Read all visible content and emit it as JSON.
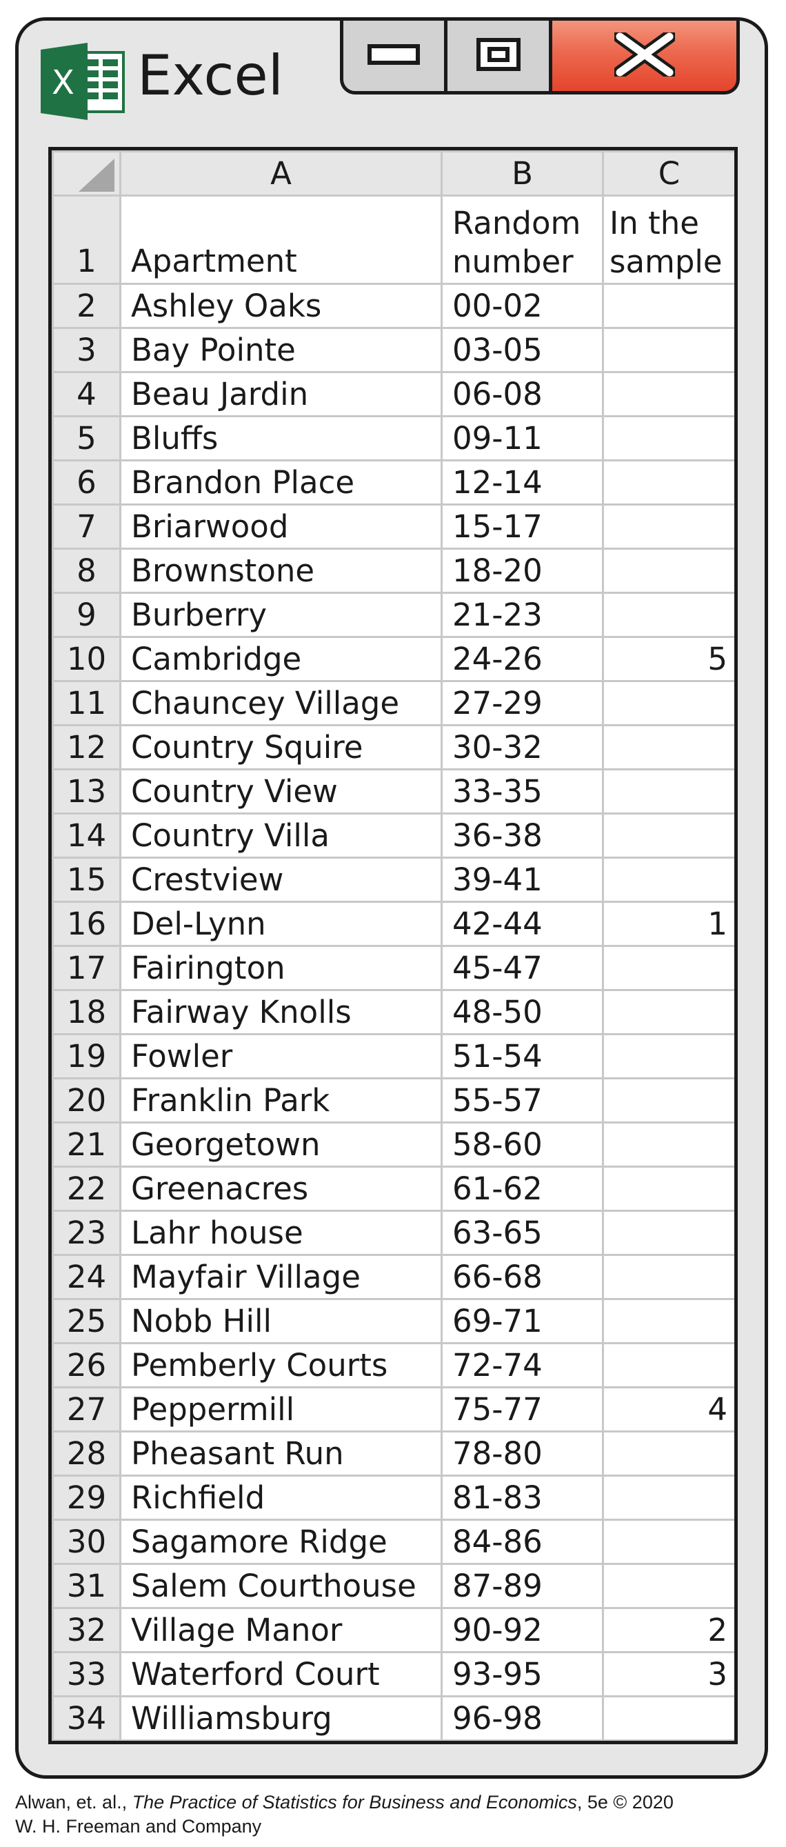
{
  "app": {
    "title": "Excel",
    "logo_letter": "X"
  },
  "window_controls": [
    "minimize-icon",
    "maximize-icon",
    "close-icon"
  ],
  "columns": {
    "corner": "",
    "a": "A",
    "b": "B",
    "c": "C"
  },
  "header_row": {
    "number": "1",
    "apartment": "Apartment",
    "random_line1": "Random",
    "random_line2": "number",
    "sample_line1": "In the",
    "sample_line2": "sample"
  },
  "rows": [
    {
      "n": "2",
      "apartment": "Ashley Oaks",
      "random": "00-02",
      "sample": ""
    },
    {
      "n": "3",
      "apartment": "Bay Pointe",
      "random": "03-05",
      "sample": ""
    },
    {
      "n": "4",
      "apartment": "Beau Jardin",
      "random": "06-08",
      "sample": ""
    },
    {
      "n": "5",
      "apartment": "Bluffs",
      "random": "09-11",
      "sample": ""
    },
    {
      "n": "6",
      "apartment": "Brandon Place",
      "random": "12-14",
      "sample": ""
    },
    {
      "n": "7",
      "apartment": "Briarwood",
      "random": "15-17",
      "sample": ""
    },
    {
      "n": "8",
      "apartment": "Brownstone",
      "random": "18-20",
      "sample": ""
    },
    {
      "n": "9",
      "apartment": "Burberry",
      "random": "21-23",
      "sample": ""
    },
    {
      "n": "10",
      "apartment": "Cambridge",
      "random": "24-26",
      "sample": "5"
    },
    {
      "n": "11",
      "apartment": "Chauncey Village",
      "random": "27-29",
      "sample": ""
    },
    {
      "n": "12",
      "apartment": "Country Squire",
      "random": "30-32",
      "sample": ""
    },
    {
      "n": "13",
      "apartment": "Country View",
      "random": "33-35",
      "sample": ""
    },
    {
      "n": "14",
      "apartment": "Country Villa",
      "random": "36-38",
      "sample": ""
    },
    {
      "n": "15",
      "apartment": "Crestview",
      "random": "39-41",
      "sample": ""
    },
    {
      "n": "16",
      "apartment": "Del-Lynn",
      "random": "42-44",
      "sample": "1"
    },
    {
      "n": "17",
      "apartment": "Fairington",
      "random": "45-47",
      "sample": ""
    },
    {
      "n": "18",
      "apartment": "Fairway Knolls",
      "random": "48-50",
      "sample": ""
    },
    {
      "n": "19",
      "apartment": "Fowler",
      "random": "51-54",
      "sample": ""
    },
    {
      "n": "20",
      "apartment": "Franklin Park",
      "random": "55-57",
      "sample": ""
    },
    {
      "n": "21",
      "apartment": "Georgetown",
      "random": "58-60",
      "sample": ""
    },
    {
      "n": "22",
      "apartment": "Greenacres",
      "random": "61-62",
      "sample": ""
    },
    {
      "n": "23",
      "apartment": "Lahr house",
      "random": "63-65",
      "sample": ""
    },
    {
      "n": "24",
      "apartment": "Mayfair Village",
      "random": "66-68",
      "sample": ""
    },
    {
      "n": "25",
      "apartment": "Nobb Hill",
      "random": "69-71",
      "sample": ""
    },
    {
      "n": "26",
      "apartment": "Pemberly Courts",
      "random": "72-74",
      "sample": ""
    },
    {
      "n": "27",
      "apartment": "Peppermill",
      "random": "75-77",
      "sample": "4"
    },
    {
      "n": "28",
      "apartment": "Pheasant Run",
      "random": "78-80",
      "sample": ""
    },
    {
      "n": "29",
      "apartment": "Richfield",
      "random": "81-83",
      "sample": ""
    },
    {
      "n": "30",
      "apartment": "Sagamore Ridge",
      "random": "84-86",
      "sample": ""
    },
    {
      "n": "31",
      "apartment": "Salem Courthouse",
      "random": "87-89",
      "sample": ""
    },
    {
      "n": "32",
      "apartment": "Village Manor",
      "random": "90-92",
      "sample": "2"
    },
    {
      "n": "33",
      "apartment": "Waterford Court",
      "random": "93-95",
      "sample": "3"
    },
    {
      "n": "34",
      "apartment": "Williamsburg",
      "random": "96-98",
      "sample": ""
    }
  ],
  "caption": {
    "authors": "Alwan, et. al., ",
    "book": "The Practice of Statistics for Business and Economics",
    "edition": ", 5e © 2020",
    "publisher": "W. H. Freeman and Company"
  },
  "colors": {
    "excel_green": "#1f7244",
    "close_red": "#e4452c",
    "frame": "#e6e6e6"
  }
}
